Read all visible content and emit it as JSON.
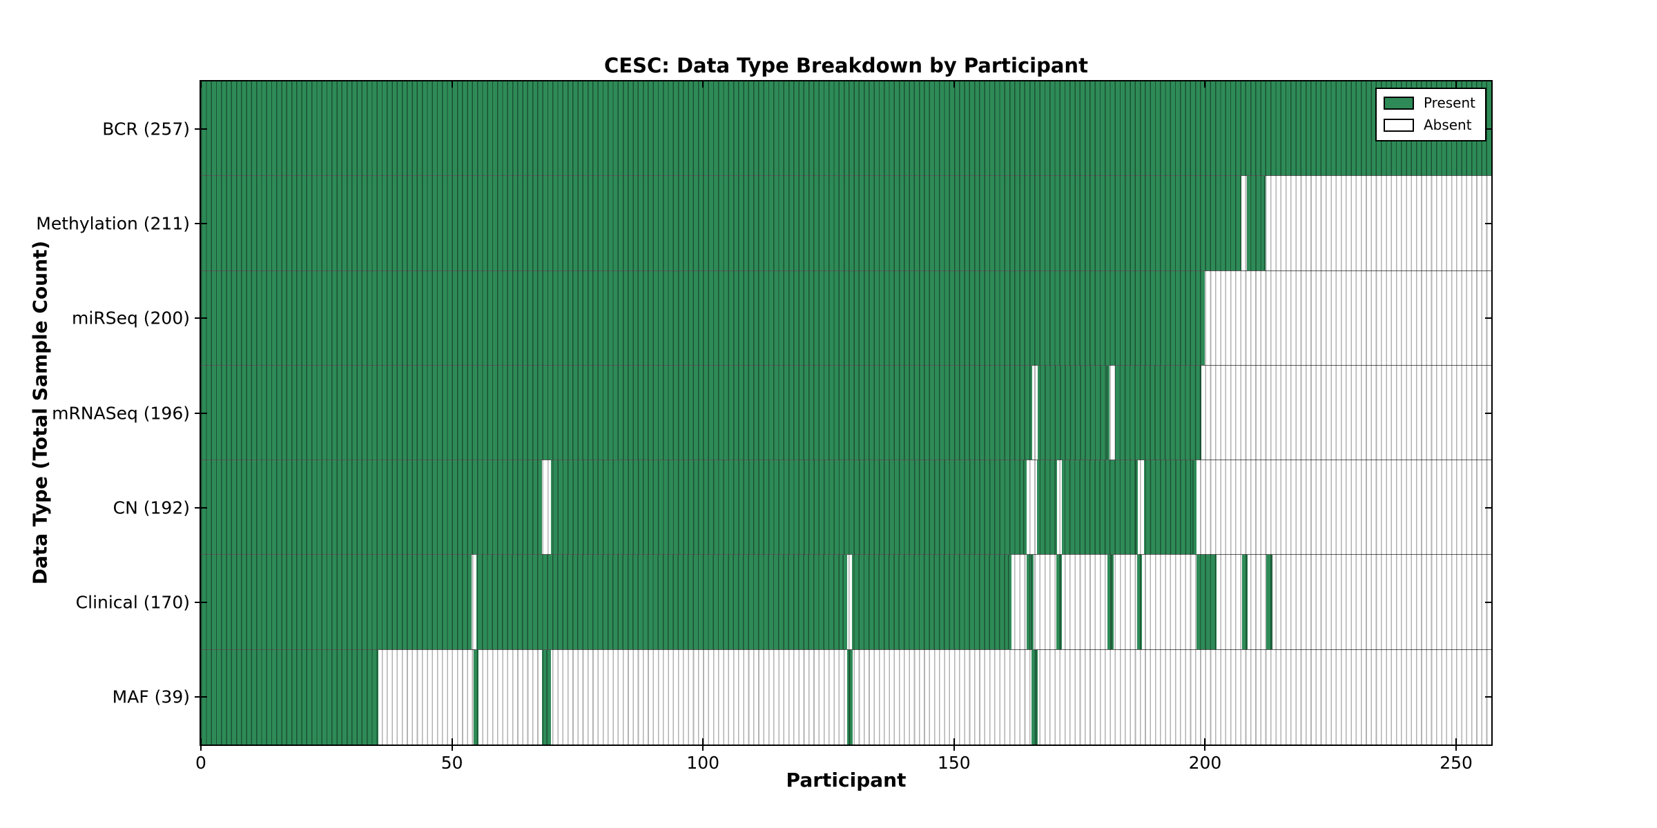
{
  "chart_data": {
    "type": "heatmap",
    "title": "CESC: Data Type Breakdown by Participant",
    "xlabel": "Participant",
    "ylabel": "Data Type (Total Sample Count)",
    "x_range": [
      0,
      257
    ],
    "x_ticks": [
      0,
      50,
      100,
      150,
      200,
      250
    ],
    "grid": false,
    "legend_position": "upper right",
    "legend": [
      {
        "label": "Present",
        "value": "present"
      },
      {
        "label": "Absent",
        "value": "absent"
      }
    ],
    "colors": {
      "present": "#2e8b57",
      "absent": "#ffffff",
      "cell_line_on_green": "rgba(0,0,0,0.42)",
      "cell_line_on_white": "#b2b2b2",
      "row_separator": "rgba(0,0,0,0.65)"
    },
    "rows": [
      {
        "label": "BCR (257)",
        "total": 257,
        "present": [
          [
            0,
            257
          ]
        ]
      },
      {
        "label": "Methylation (211)",
        "total": 211,
        "present": [
          [
            0,
            207.2
          ],
          [
            208.3,
            212.1
          ]
        ]
      },
      {
        "label": "miRSeq (200)",
        "total": 200,
        "present": [
          [
            0,
            200
          ]
        ]
      },
      {
        "label": "mRNASeq (196)",
        "total": 196,
        "present": [
          [
            0,
            165.6
          ],
          [
            166.6,
            181.0
          ],
          [
            182.1,
            199.3
          ]
        ]
      },
      {
        "label": "CN (192)",
        "total": 192,
        "present": [
          [
            0,
            67.9
          ],
          [
            69.7,
            164.5
          ],
          [
            166.5,
            170.5
          ],
          [
            171.5,
            186.6
          ],
          [
            187.8,
            198.3
          ]
        ]
      },
      {
        "label": "Clinical (170)",
        "total": 170,
        "present": [
          [
            0,
            53.9
          ],
          [
            54.9,
            128.7
          ],
          [
            129.7,
            161.4
          ],
          [
            164.5,
            165.9
          ],
          [
            170.4,
            171.5
          ],
          [
            180.5,
            181.8
          ],
          [
            186.4,
            187.4
          ],
          [
            198.3,
            202.3
          ],
          [
            207.3,
            208.4
          ],
          [
            212.2,
            213.4
          ]
        ]
      },
      {
        "label": "MAF (39)",
        "total": 39,
        "present": [
          [
            0,
            35.3
          ],
          [
            54.3,
            55.3
          ],
          [
            67.9,
            69.7
          ],
          [
            128.7,
            129.8
          ],
          [
            165.4,
            166.6
          ]
        ]
      }
    ]
  }
}
